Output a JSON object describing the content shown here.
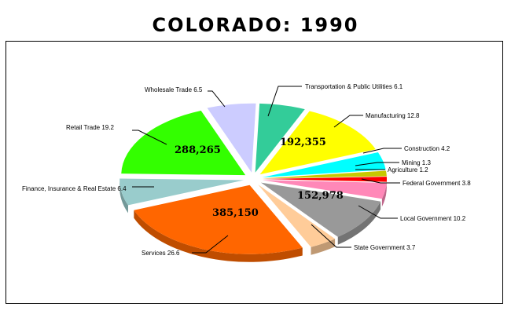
{
  "chart_data": {
    "type": "pie",
    "title": "COLORADO:  1990",
    "slices": [
      {
        "label": "Transportation & Public Utilities 6.1",
        "value": 6.1,
        "color": "#33cc99"
      },
      {
        "label": "Manufacturing 12.8",
        "value": 12.8,
        "color": "#ffff00"
      },
      {
        "label": "Construction 4.2",
        "value": 4.2,
        "color": "#00ffff"
      },
      {
        "label": "Mining 1.3",
        "value": 1.3,
        "color": "#c8c800"
      },
      {
        "label": "Agriculture 1.2",
        "value": 1.2,
        "color": "#ff0000"
      },
      {
        "label": "Federal Government 3.8",
        "value": 3.8,
        "color": "#ff88b8"
      },
      {
        "label": "Local Government 10.2",
        "value": 10.2,
        "color": "#999999"
      },
      {
        "label": "State Government 3.7",
        "value": 3.7,
        "color": "#ffcc99"
      },
      {
        "label": "Services 26.6",
        "value": 26.6,
        "color": "#ff6600"
      },
      {
        "label": "Finance, Insurance & Real Estate 6.4",
        "value": 6.4,
        "color": "#99cccc"
      },
      {
        "label": "Retail Trade 19.2",
        "value": 19.2,
        "color": "#33ff00"
      },
      {
        "label": "Wholesale Trade 6.5",
        "value": 6.5,
        "color": "#ccccff"
      }
    ],
    "data_labels": [
      {
        "text": "192,355",
        "slice": "Manufacturing 12.8"
      },
      {
        "text": "152,978",
        "slice": "Local Government 10.2"
      },
      {
        "text": "385,150",
        "slice": "Services 26.6"
      },
      {
        "text": "288,265",
        "slice": "Retail Trade 19.2"
      }
    ]
  }
}
